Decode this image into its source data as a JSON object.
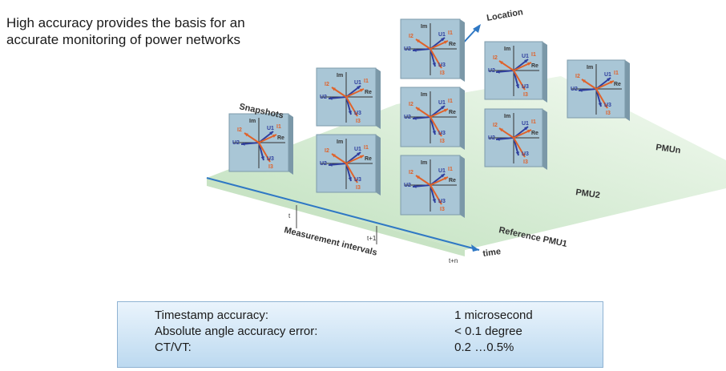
{
  "heading": {
    "line1": "High accuracy provides the basis for an",
    "line2": "accurate monitoring of power networks"
  },
  "diagram": {
    "axis_labels": {
      "location": "Location",
      "time": "time",
      "snapshots": "Snapshots",
      "measurement_intervals": "Measurement intervals"
    },
    "pmu_labels": {
      "pmu1": "Reference PMU1",
      "pmu2": "PMU2",
      "pmun": "PMUn"
    },
    "time_ticks": [
      "t",
      "t+1",
      "t+n"
    ],
    "phasor_axis_labels": {
      "re": "Re",
      "im": "Im"
    },
    "phasor_labels": {
      "voltage_a": "U1",
      "voltage_b": "U2",
      "voltage_c": "U3",
      "current_a": "I1",
      "current_b": "I2",
      "current_c": "I3"
    },
    "colors": {
      "voltage": "#2f3f9e",
      "current": "#e0622a",
      "panel": "#a9c6d6",
      "floor": "#d7ecd3",
      "axis": "#2f78c4"
    }
  },
  "specs": [
    {
      "label": "Timestamp accuracy:",
      "value": "1 microsecond"
    },
    {
      "label": "Absolute angle accuracy error:",
      "value": "< 0.1 degree"
    },
    {
      "label": "CT/VT:",
      "value": "0.2 …0.5%"
    }
  ]
}
